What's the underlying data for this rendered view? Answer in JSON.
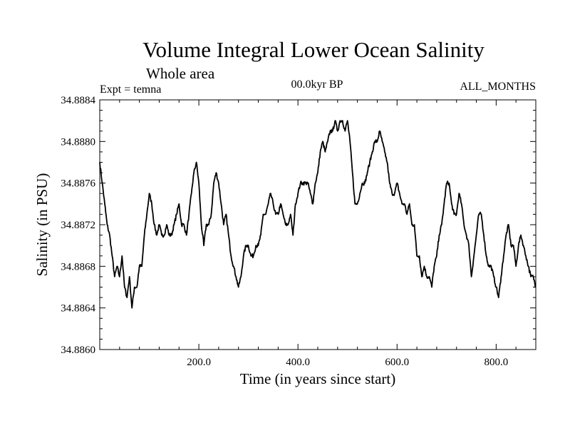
{
  "chart_data": {
    "type": "line",
    "title": "Volume Integral Lower Ocean Salinity",
    "subtitle": "Whole area",
    "left_note": "Expt = temna",
    "center_note": "00.0kyr BP",
    "right_note": "ALL_MONTHS",
    "xlabel": "Time (in years since start)",
    "ylabel": "Salinity (in PSU)",
    "xlim": [
      0,
      880
    ],
    "ylim": [
      34.886,
      34.8884
    ],
    "x_ticks": [
      200,
      400,
      600,
      800
    ],
    "x_tick_labels": [
      "200.0",
      "400.0",
      "600.0",
      "800.0"
    ],
    "y_ticks": [
      34.886,
      34.8864,
      34.8868,
      34.8872,
      34.8876,
      34.888,
      34.8884
    ],
    "y_tick_labels": [
      "34.8860",
      "34.8864",
      "34.8868",
      "34.8872",
      "34.8876",
      "34.8880",
      "34.8884"
    ],
    "line_color": "#000000",
    "series": [
      {
        "name": "salinity",
        "x": [
          0,
          5,
          10,
          15,
          20,
          25,
          30,
          35,
          40,
          45,
          50,
          55,
          60,
          65,
          70,
          75,
          80,
          85,
          90,
          95,
          100,
          105,
          110,
          115,
          120,
          125,
          130,
          135,
          140,
          145,
          150,
          155,
          160,
          165,
          170,
          175,
          180,
          185,
          190,
          195,
          200,
          205,
          210,
          215,
          220,
          225,
          230,
          235,
          240,
          245,
          250,
          255,
          260,
          265,
          270,
          275,
          280,
          285,
          290,
          295,
          300,
          305,
          310,
          315,
          320,
          325,
          330,
          335,
          340,
          345,
          350,
          355,
          360,
          365,
          370,
          375,
          380,
          385,
          390,
          395,
          400,
          405,
          410,
          415,
          420,
          425,
          430,
          435,
          440,
          445,
          450,
          455,
          460,
          465,
          470,
          475,
          480,
          485,
          490,
          495,
          500,
          505,
          510,
          515,
          520,
          525,
          530,
          535,
          540,
          545,
          550,
          555,
          560,
          565,
          570,
          575,
          580,
          585,
          590,
          595,
          600,
          605,
          610,
          615,
          620,
          625,
          630,
          635,
          640,
          645,
          650,
          655,
          660,
          665,
          670,
          675,
          680,
          685,
          690,
          695,
          700,
          705,
          710,
          715,
          720,
          725,
          730,
          735,
          740,
          745,
          750,
          755,
          760,
          765,
          770,
          775,
          780,
          785,
          790,
          795,
          800,
          805,
          810,
          815,
          820,
          825,
          830,
          835,
          840,
          845,
          850,
          855,
          860,
          865,
          870,
          875,
          880
        ],
        "values": [
          34.8878,
          34.8876,
          34.8874,
          34.8872,
          34.8871,
          34.8869,
          34.8867,
          34.8868,
          34.8867,
          34.8869,
          34.8866,
          34.8865,
          34.8867,
          34.8864,
          34.8866,
          34.8866,
          34.8868,
          34.8868,
          34.8871,
          34.8873,
          34.8875,
          34.8874,
          34.8872,
          34.8871,
          34.8872,
          34.8871,
          34.8871,
          34.8872,
          34.8871,
          34.8871,
          34.8872,
          34.8873,
          34.8874,
          34.8872,
          34.8872,
          34.8871,
          34.8873,
          34.8875,
          34.8877,
          34.8878,
          34.8876,
          34.8872,
          34.887,
          34.8872,
          34.8872,
          34.8873,
          34.8876,
          34.8877,
          34.8876,
          34.8874,
          34.8872,
          34.8873,
          34.8871,
          34.8869,
          34.8868,
          34.8867,
          34.8866,
          34.8867,
          34.8869,
          34.887,
          34.887,
          34.8869,
          34.8869,
          34.887,
          34.887,
          34.8871,
          34.8873,
          34.8873,
          34.8874,
          34.8875,
          34.8874,
          34.8873,
          34.8873,
          34.8874,
          34.8873,
          34.8872,
          34.8872,
          34.8873,
          34.8871,
          34.8874,
          34.8875,
          34.8876,
          34.8876,
          34.8876,
          34.8876,
          34.8875,
          34.8874,
          34.8876,
          34.8877,
          34.8879,
          34.888,
          34.8879,
          34.888,
          34.8881,
          34.8881,
          34.8882,
          34.8881,
          34.8882,
          34.8882,
          34.8881,
          34.8882,
          34.888,
          34.8877,
          34.8874,
          34.8874,
          34.8875,
          34.8876,
          34.8876,
          34.8877,
          34.8878,
          34.8879,
          34.888,
          34.888,
          34.8881,
          34.888,
          34.8879,
          34.8878,
          34.8876,
          34.8875,
          34.8875,
          34.8876,
          34.8875,
          34.8874,
          34.8874,
          34.8873,
          34.8874,
          34.8872,
          34.8872,
          34.8869,
          34.8869,
          34.8867,
          34.8868,
          34.8867,
          34.8867,
          34.8866,
          34.8868,
          34.8869,
          34.8871,
          34.8872,
          34.8874,
          34.8876,
          34.8876,
          34.8874,
          34.8873,
          34.8873,
          34.8875,
          34.8874,
          34.8872,
          34.8871,
          34.887,
          34.8867,
          34.8869,
          34.8871,
          34.8873,
          34.8873,
          34.8871,
          34.8869,
          34.8868,
          34.8868,
          34.8867,
          34.8866,
          34.8865,
          34.8867,
          34.8869,
          34.8871,
          34.8872,
          34.887,
          34.887,
          34.8868,
          34.887,
          34.8871,
          34.887,
          34.8869,
          34.8868,
          34.8867,
          34.8867,
          34.8866
        ]
      }
    ]
  }
}
